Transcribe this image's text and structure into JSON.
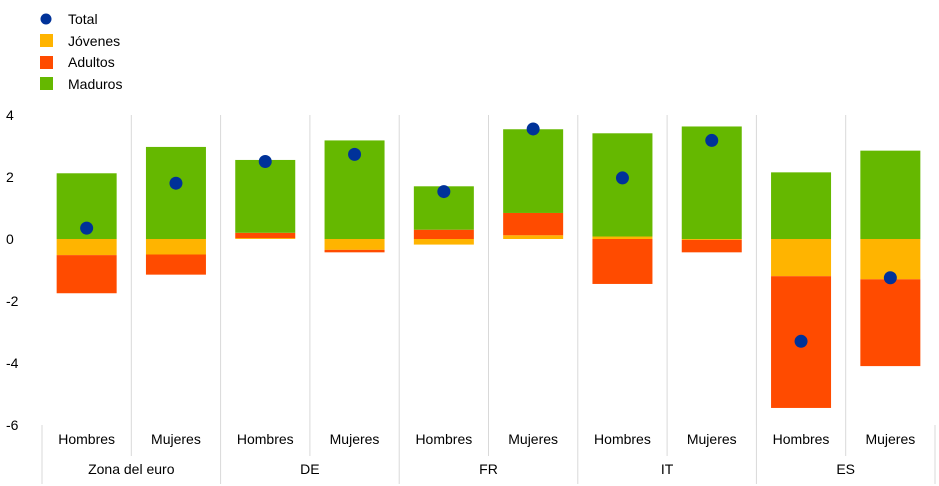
{
  "chart_data": {
    "type": "bar",
    "stacked": true,
    "groups": [
      "Zona del euro",
      "DE",
      "FR",
      "IT",
      "ES"
    ],
    "categories": [
      "Hombres",
      "Mujeres",
      "Hombres",
      "Mujeres",
      "Hombres",
      "Mujeres",
      "Hombres",
      "Mujeres",
      "Hombres",
      "Mujeres"
    ],
    "series": [
      {
        "name": "Jóvenes",
        "color": "#FFB400",
        "values": [
          -0.52,
          -0.5,
          0.03,
          -0.35,
          -0.18,
          0.12,
          0.08,
          -0.03,
          -1.2,
          -1.3
        ]
      },
      {
        "name": "Adultos",
        "color": "#FF4B00",
        "values": [
          -1.23,
          -0.65,
          0.17,
          -0.08,
          0.3,
          0.72,
          -1.45,
          -0.4,
          -4.25,
          -2.8
        ]
      },
      {
        "name": "Maduros",
        "color": "#65B800",
        "values": [
          2.12,
          2.97,
          2.35,
          3.18,
          1.4,
          2.7,
          3.33,
          3.63,
          2.15,
          2.85
        ]
      }
    ],
    "total": {
      "name": "Total",
      "color": "#003299",
      "values": [
        0.35,
        1.8,
        2.5,
        2.73,
        1.53,
        3.55,
        1.97,
        3.18,
        -3.3,
        -1.25
      ]
    },
    "ylim": [
      -6,
      4
    ],
    "yticks": [
      "4",
      "2",
      "0",
      "-2",
      "-4",
      "-6"
    ],
    "legend_position": "top-left",
    "grid": true
  }
}
